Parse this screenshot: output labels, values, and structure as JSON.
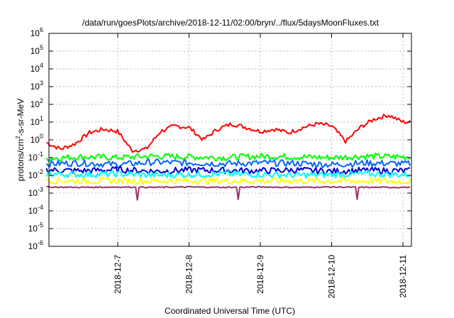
{
  "chart_data": {
    "type": "line",
    "title": "/data/run/goesPlots/archive/2018-12-11/02:00/bryn/../flux/5daysMoonFluxes.txt",
    "xlabel": "Coordinated Universal Time (UTC)",
    "ylabel": "protons/cm2-s-sr-MeV",
    "ylabel_parts": {
      "pre": "protons/cm",
      "sup": "2",
      "post": "-s-sr-MeV"
    },
    "yscale": "log",
    "ylim": [
      1e-06,
      1000000.0
    ],
    "xlim": [
      0,
      5.0
    ],
    "grid": true,
    "y_ticks": [
      {
        "exp": "-6",
        "v": -6
      },
      {
        "exp": "-5",
        "v": -5
      },
      {
        "exp": "-4",
        "v": -4
      },
      {
        "exp": "-3",
        "v": -3
      },
      {
        "exp": "-2",
        "v": -2
      },
      {
        "exp": "-1",
        "v": -1
      },
      {
        "exp": "0",
        "v": 0
      },
      {
        "exp": "1",
        "v": 1
      },
      {
        "exp": "2",
        "v": 2
      },
      {
        "exp": "3",
        "v": 3
      },
      {
        "exp": "4",
        "v": 4
      },
      {
        "exp": "5",
        "v": 5
      },
      {
        "exp": "6",
        "v": 6
      }
    ],
    "y_tick_base": "10",
    "x_ticks": [
      {
        "label": "2018-12-7",
        "v": 1
      },
      {
        "label": "2018-12-8",
        "v": 2
      },
      {
        "label": "2018-12-9",
        "v": 3
      },
      {
        "label": "2018-12-10",
        "v": 4
      },
      {
        "label": "2018-12-11",
        "v": 5
      }
    ],
    "series": [
      {
        "color": "#ff0000",
        "x": [
          0,
          0.2,
          0.4,
          0.6,
          0.8,
          1.0,
          1.2,
          1.4,
          1.6,
          1.8,
          2.0,
          2.2,
          2.4,
          2.6,
          2.8,
          3.0,
          3.2,
          3.4,
          3.6,
          3.8,
          4.0,
          4.2,
          4.4,
          4.6,
          4.8,
          5.0
        ],
        "y": [
          0.7,
          0.3,
          0.6,
          2.5,
          4,
          3,
          0.25,
          0.3,
          3,
          6,
          5,
          1,
          4,
          8,
          5,
          3,
          4,
          2.5,
          5,
          8,
          6,
          0.8,
          5,
          15,
          25,
          10
        ]
      },
      {
        "color": "#00ff00",
        "x": [
          0,
          0.5,
          1.0,
          1.5,
          2.0,
          2.5,
          3.0,
          3.5,
          4.0,
          4.5,
          5.0
        ],
        "y": [
          0.09,
          0.11,
          0.1,
          0.12,
          0.11,
          0.1,
          0.12,
          0.11,
          0.1,
          0.12,
          0.11
        ]
      },
      {
        "color": "#0066ff",
        "x": [
          0,
          0.5,
          1.0,
          1.5,
          2.0,
          2.5,
          3.0,
          3.5,
          4.0,
          4.5,
          5.0
        ],
        "y": [
          0.045,
          0.05,
          0.04,
          0.055,
          0.05,
          0.045,
          0.05,
          0.048,
          0.04,
          0.05,
          0.045
        ]
      },
      {
        "color": "#0000cc",
        "x": [
          0,
          0.5,
          1.0,
          1.5,
          2.0,
          2.5,
          3.0,
          3.5,
          4.0,
          4.5,
          5.0
        ],
        "y": [
          0.02,
          0.018,
          0.021,
          0.017,
          0.02,
          0.019,
          0.018,
          0.02,
          0.017,
          0.019,
          0.018
        ]
      },
      {
        "color": "#00ffff",
        "x": [
          0,
          0.5,
          1.0,
          1.5,
          2.0,
          2.5,
          3.0,
          3.5,
          4.0,
          4.5,
          5.0
        ],
        "y": [
          0.012,
          0.011,
          0.012,
          0.01,
          0.011,
          0.012,
          0.011,
          0.01,
          0.011,
          0.012,
          0.011
        ]
      },
      {
        "color": "#ffff00",
        "x": [
          0,
          0.5,
          1.0,
          1.5,
          2.0,
          2.5,
          3.0,
          3.5,
          4.0,
          4.5,
          5.0
        ],
        "y": [
          0.005,
          0.0048,
          0.005,
          0.0047,
          0.005,
          0.0048,
          0.0049,
          0.005,
          0.0047,
          0.0048,
          0.0045
        ]
      },
      {
        "color": "#993366",
        "x": [
          0,
          0.5,
          1.0,
          1.5,
          2.0,
          2.5,
          3.0,
          3.5,
          4.0,
          4.5,
          5.0
        ],
        "y": [
          0.0022,
          0.0021,
          0.0022,
          0.0021,
          0.0022,
          0.0021,
          0.0022,
          0.0021,
          0.0022,
          0.0021,
          0.0021
        ]
      }
    ]
  }
}
